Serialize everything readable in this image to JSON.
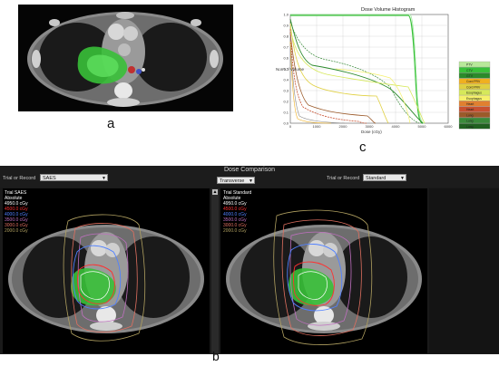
{
  "labels": {
    "a": "a",
    "b": "b",
    "c": "c"
  },
  "dvh": {
    "title": "Dose Volume Histogram",
    "ylabel": "Norm. / Volume",
    "xlabel": "Dose (cGy)",
    "y_ticks": [
      "1.0",
      "0.9",
      "0.8",
      "0.7",
      "0.6",
      "0.5",
      "0.4",
      "0.3",
      "0.2",
      "0.1",
      "0.0"
    ],
    "x_ticks": [
      "0",
      "1000",
      "2000",
      "3000",
      "4000",
      "5000",
      "6000"
    ],
    "legend_colors": [
      "#b8e89a",
      "#39c039",
      "#2b8a2b",
      "#f0b020",
      "#e0d040",
      "#d6e85a",
      "#f5f06a",
      "#e08030",
      "#c85030",
      "#9b5a2a",
      "#3a8a3a",
      "#206020"
    ],
    "legend_labels": [
      "PTV",
      "CTV",
      "GTV",
      "Cord PRV",
      "Cord PRV",
      "Esophagus",
      "Esophagus",
      "Heart",
      "Heart",
      "Lung",
      "Lung",
      "Lung"
    ]
  },
  "dose_comparison": {
    "title": "Dose Comparison",
    "view_select": "Transverse",
    "left": {
      "trial_label": "Trial or Record",
      "trial_value": "SAES",
      "heading": "Trial SAES",
      "subheading": "Absolute",
      "levels": [
        {
          "text": "4950.0 cGy",
          "color": "#ffffff"
        },
        {
          "text": "4500.0 cGy",
          "color": "#ff3030"
        },
        {
          "text": "4000.0 cGy",
          "color": "#5080ff"
        },
        {
          "text": "3500.0 cGy",
          "color": "#c070c0"
        },
        {
          "text": "3000.0 cGy",
          "color": "#e07060"
        },
        {
          "text": "2000.0 cGy",
          "color": "#b0a060"
        }
      ]
    },
    "right": {
      "trial_label": "Trial or Record",
      "trial_value": "Standard",
      "heading": "Trial Standard",
      "subheading": "Absolute",
      "levels": [
        {
          "text": "4950.0 cGy",
          "color": "#ffffff"
        },
        {
          "text": "4500.0 cGy",
          "color": "#ff3030"
        },
        {
          "text": "4000.0 cGy",
          "color": "#5080ff"
        },
        {
          "text": "3500.0 cGy",
          "color": "#c070c0"
        },
        {
          "text": "3000.0 cGy",
          "color": "#e07060"
        },
        {
          "text": "2000.0 cGy",
          "color": "#b0a060"
        }
      ]
    }
  }
}
